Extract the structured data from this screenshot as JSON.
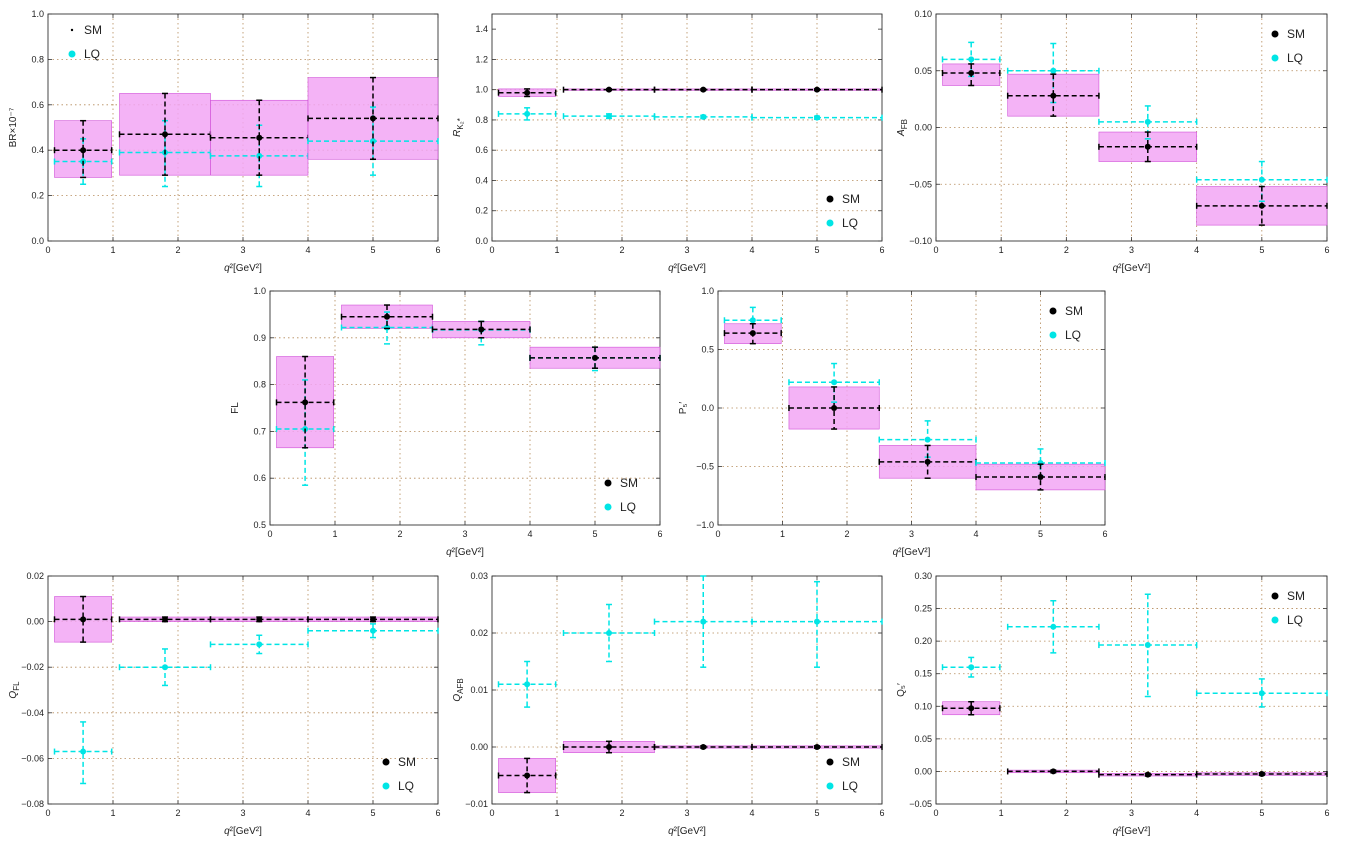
{
  "colors": {
    "sm": "#000000",
    "lq": "#00e5e5",
    "band_fill": "#f2a6f5",
    "band_stroke": "#d050d8",
    "grid": "#b58a5a"
  },
  "legend_labels": {
    "sm": "SM",
    "lq": "LQ"
  },
  "bins": [
    {
      "lo": 0.1,
      "hi": 0.98
    },
    {
      "lo": 1.1,
      "hi": 2.5
    },
    {
      "lo": 2.5,
      "hi": 4.0
    },
    {
      "lo": 4.0,
      "hi": 6.0
    }
  ],
  "chart_data": [
    {
      "id": "br",
      "type": "scatter",
      "ylabel": "BR×10⁻⁷",
      "xlabel": "q²[GeV²]",
      "xlim": [
        0,
        6
      ],
      "ylim": [
        0,
        1.0
      ],
      "yticks": [
        0,
        0.2,
        0.4,
        0.6,
        0.8,
        1.0
      ],
      "ydec": 1,
      "legend": "top-left",
      "legend_sm_marker": "dot",
      "sm": [
        0.4,
        0.47,
        0.455,
        0.54
      ],
      "sm_lo": [
        0.28,
        0.29,
        0.29,
        0.36
      ],
      "sm_hi": [
        0.53,
        0.65,
        0.62,
        0.72
      ],
      "lq": [
        0.35,
        0.39,
        0.375,
        0.44
      ],
      "lq_lo": [
        0.25,
        0.24,
        0.24,
        0.29
      ],
      "lq_hi": [
        0.45,
        0.53,
        0.51,
        0.59
      ]
    },
    {
      "id": "rk",
      "type": "scatter",
      "ylabel": "R_K₂*",
      "xlabel": "q²[GeV²]",
      "xlim": [
        0,
        6
      ],
      "ylim": [
        0,
        1.5
      ],
      "yticks": [
        0,
        0.2,
        0.4,
        0.6,
        0.8,
        1.0,
        1.2,
        1.4
      ],
      "ydec": 1,
      "legend": "bottom-right",
      "sm": [
        0.98,
        1.0,
        1.0,
        1.0
      ],
      "sm_lo": [
        0.955,
        0.995,
        0.995,
        0.995
      ],
      "sm_hi": [
        1.005,
        1.005,
        1.005,
        1.005
      ],
      "lq": [
        0.84,
        0.825,
        0.82,
        0.815
      ],
      "lq_lo": [
        0.8,
        0.81,
        0.81,
        0.805
      ],
      "lq_hi": [
        0.88,
        0.84,
        0.83,
        0.825
      ]
    },
    {
      "id": "afb",
      "type": "scatter",
      "ylabel": "A_FB",
      "xlabel": "q²[GeV²]",
      "xlim": [
        0,
        6
      ],
      "ylim": [
        -0.1,
        0.1
      ],
      "yticks": [
        -0.1,
        -0.05,
        0.0,
        0.05,
        0.1
      ],
      "ydec": 2,
      "legend": "top-right",
      "sm": [
        0.048,
        0.028,
        -0.017,
        -0.069
      ],
      "sm_lo": [
        0.037,
        0.01,
        -0.03,
        -0.086
      ],
      "sm_hi": [
        0.056,
        0.047,
        -0.004,
        -0.052
      ],
      "lq": [
        0.06,
        0.05,
        0.005,
        -0.046
      ],
      "lq_lo": [
        0.045,
        0.022,
        -0.01,
        -0.065
      ],
      "lq_hi": [
        0.075,
        0.074,
        0.019,
        -0.03
      ]
    },
    {
      "id": "fl",
      "type": "scatter",
      "ylabel": "FL",
      "xlabel": "q²[GeV²]",
      "xlim": [
        0,
        6
      ],
      "ylim": [
        0.5,
        1.0
      ],
      "yticks": [
        0.5,
        0.6,
        0.7,
        0.8,
        0.9,
        1.0
      ],
      "ydec": 1,
      "legend": "bottom-right",
      "sm": [
        0.762,
        0.945,
        0.918,
        0.857
      ],
      "sm_lo": [
        0.665,
        0.92,
        0.9,
        0.835
      ],
      "sm_hi": [
        0.86,
        0.97,
        0.935,
        0.88
      ],
      "lq": [
        0.705,
        0.922,
        0.917,
        0.857
      ],
      "lq_lo": [
        0.585,
        0.887,
        0.885,
        0.83
      ],
      "lq_hi": [
        0.81,
        0.955,
        0.935,
        0.88
      ]
    },
    {
      "id": "p5",
      "type": "scatter",
      "ylabel": "P₅′",
      "xlabel": "q²[GeV²]",
      "xlim": [
        0,
        6
      ],
      "ylim": [
        -1.0,
        1.0
      ],
      "yticks": [
        -1.0,
        -0.5,
        0.0,
        0.5,
        1.0
      ],
      "ydec": 1,
      "legend": "top-right",
      "sm": [
        0.64,
        0.0,
        -0.46,
        -0.59
      ],
      "sm_lo": [
        0.55,
        -0.18,
        -0.6,
        -0.7
      ],
      "sm_hi": [
        0.72,
        0.18,
        -0.32,
        -0.48
      ],
      "lq": [
        0.75,
        0.22,
        -0.27,
        -0.47
      ],
      "lq_lo": [
        0.64,
        0.05,
        -0.42,
        -0.58
      ],
      "lq_hi": [
        0.86,
        0.38,
        -0.11,
        -0.35
      ]
    },
    {
      "id": "qfl",
      "type": "scatter",
      "ylabel": "Q_FL",
      "xlabel": "q²[GeV²]",
      "xlim": [
        0,
        6
      ],
      "ylim": [
        -0.08,
        0.02
      ],
      "yticks": [
        -0.08,
        -0.06,
        -0.04,
        -0.02,
        0.0,
        0.02
      ],
      "ydec": 2,
      "legend": "bottom-right",
      "sm": [
        0.001,
        0.001,
        0.001,
        0.001
      ],
      "sm_lo": [
        -0.009,
        0.0,
        0.0,
        0.0
      ],
      "sm_hi": [
        0.011,
        0.002,
        0.002,
        0.002
      ],
      "lq": [
        -0.057,
        -0.02,
        -0.01,
        -0.004
      ],
      "lq_lo": [
        -0.071,
        -0.028,
        -0.014,
        -0.007
      ],
      "lq_hi": [
        -0.044,
        -0.012,
        -0.006,
        -0.001
      ]
    },
    {
      "id": "qafb",
      "type": "scatter",
      "ylabel": "Q_AFB",
      "xlabel": "q²[GeV²]",
      "xlim": [
        0,
        6
      ],
      "ylim": [
        -0.01,
        0.03
      ],
      "yticks": [
        -0.01,
        0.0,
        0.01,
        0.02,
        0.03
      ],
      "ydec": 2,
      "legend": "bottom-right",
      "sm": [
        -0.005,
        0.0,
        0.0,
        0.0
      ],
      "sm_lo": [
        -0.008,
        -0.001,
        -0.0002,
        -0.0002
      ],
      "sm_hi": [
        -0.002,
        0.001,
        0.0002,
        0.0002
      ],
      "lq": [
        0.011,
        0.02,
        0.022,
        0.022
      ],
      "lq_lo": [
        0.007,
        0.015,
        0.014,
        0.014
      ],
      "lq_hi": [
        0.015,
        0.025,
        0.03,
        0.029
      ]
    },
    {
      "id": "q5",
      "type": "scatter",
      "ylabel": "Q₅′",
      "xlabel": "q²[GeV²]",
      "xlim": [
        0,
        6
      ],
      "ylim": [
        -0.05,
        0.3
      ],
      "yticks": [
        -0.05,
        0.0,
        0.05,
        0.1,
        0.15,
        0.2,
        0.25,
        0.3
      ],
      "ydec": 2,
      "legend": "top-right",
      "sm": [
        0.097,
        0.0,
        -0.005,
        -0.004
      ],
      "sm_lo": [
        0.087,
        -0.002,
        -0.007,
        -0.006
      ],
      "sm_hi": [
        0.107,
        0.002,
        -0.003,
        -0.002
      ],
      "lq": [
        0.16,
        0.222,
        0.194,
        0.12
      ],
      "lq_lo": [
        0.145,
        0.182,
        0.115,
        0.099
      ],
      "lq_hi": [
        0.175,
        0.262,
        0.272,
        0.142
      ]
    }
  ]
}
